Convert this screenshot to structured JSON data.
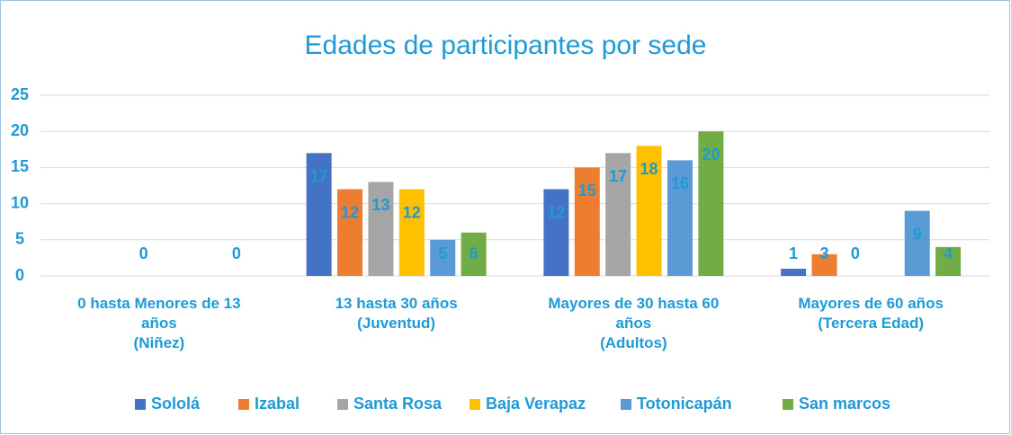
{
  "chart_data": {
    "type": "bar",
    "title": "Edades de participantes por sede",
    "categories": [
      "0 hasta Menores de 13\naños\n(Niñez)",
      "13 hasta 30 años\n(Juventud)",
      "Mayores de 30 hasta 60\naños\n(Adultos)",
      "Mayores de 60 años\n(Tercera Edad)"
    ],
    "series": [
      {
        "name": "Sololá",
        "color": "#4472c4",
        "values": [
          null,
          17,
          12,
          1
        ]
      },
      {
        "name": "Izabal",
        "color": "#ed7d31",
        "values": [
          null,
          12,
          15,
          3
        ]
      },
      {
        "name": "Santa Rosa",
        "color": "#a5a5a5",
        "values": [
          0,
          13,
          17,
          0
        ]
      },
      {
        "name": "Baja Verapaz",
        "color": "#ffc000",
        "values": [
          null,
          12,
          18,
          null
        ]
      },
      {
        "name": "Totonicapán",
        "color": "#5b9bd5",
        "values": [
          null,
          5,
          16,
          9
        ]
      },
      {
        "name": "San marcos",
        "color": "#70ad47",
        "values": [
          0,
          6,
          20,
          4
        ]
      }
    ],
    "ylim": [
      0,
      25
    ],
    "yticks": [
      0,
      5,
      10,
      15,
      20,
      25
    ],
    "grid": true,
    "legend": "bottom"
  }
}
